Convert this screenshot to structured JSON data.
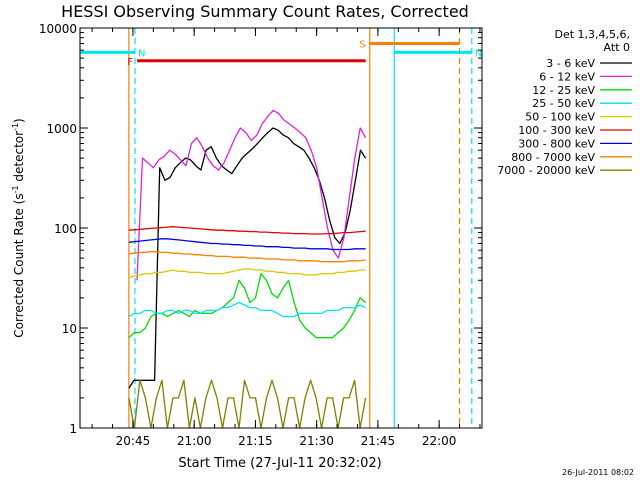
{
  "chart_data": {
    "type": "line",
    "title": "HESSI Observing Summary Count Rates, Corrected",
    "xlabel": "Start Time (27-Jul-11 20:32:02)",
    "ylabel_main": "Corrected Count Rate (s",
    "ylabel_sup1": "-1",
    "ylabel_mid": " detector",
    "ylabel_sup2": "-1",
    "ylabel_end": ")",
    "yscale": "log",
    "ylim": [
      1,
      10000
    ],
    "xlim": [
      "20:32:02",
      "22:10:30"
    ],
    "x_ticks": [
      "20:45",
      "21:00",
      "21:15",
      "21:30",
      "21:45",
      "22:00"
    ],
    "y_ticks": [
      "1",
      "10",
      "100",
      "1000",
      "10000"
    ],
    "date_stamp": "26-Jul-2011 08:02",
    "legend_header": [
      "Det 1,3,4,5,6,",
      "Att 0"
    ],
    "series": [
      {
        "name": "3 - 6 keV",
        "color": "#000000",
        "x_start": "20:44:00",
        "x_end": "21:42:00",
        "values": [
          2.5,
          3,
          3,
          3,
          3,
          3,
          400,
          300,
          320,
          400,
          450,
          500,
          480,
          420,
          380,
          600,
          650,
          500,
          420,
          380,
          350,
          420,
          500,
          560,
          620,
          700,
          800,
          900,
          1000,
          950,
          850,
          800,
          700,
          650,
          600,
          500,
          400,
          300,
          200,
          120,
          80,
          70,
          90,
          150,
          300,
          600,
          500
        ]
      },
      {
        "name": "6 - 12 keV",
        "color": "#e020e0",
        "x_start": "20:46:00",
        "x_end": "21:42:00",
        "values": [
          30,
          500,
          450,
          400,
          480,
          520,
          600,
          550,
          480,
          420,
          700,
          800,
          650,
          500,
          420,
          380,
          450,
          600,
          800,
          1000,
          900,
          750,
          850,
          1100,
          1300,
          1500,
          1400,
          1200,
          1100,
          1000,
          900,
          800,
          600,
          400,
          200,
          100,
          60,
          50,
          80,
          200,
          500,
          1000,
          800
        ]
      },
      {
        "name": "12 - 25 keV",
        "color": "#00dd00",
        "x_start": "20:44:00",
        "x_end": "21:42:00",
        "values": [
          8,
          9,
          9,
          10,
          13,
          14,
          14,
          13,
          14,
          15,
          14,
          13,
          15,
          14,
          14,
          14,
          15,
          16,
          18,
          20,
          30,
          25,
          18,
          20,
          35,
          30,
          22,
          20,
          25,
          30,
          18,
          12,
          10,
          9,
          8,
          8,
          8,
          8,
          9,
          10,
          12,
          15,
          20,
          18
        ]
      },
      {
        "name": "25 - 50 keV",
        "color": "#00e5ee",
        "x_start": "20:44:00",
        "x_end": "21:42:00",
        "values": [
          13,
          14,
          14,
          15,
          15,
          14,
          14,
          15,
          15,
          14,
          15,
          15,
          14,
          14,
          15,
          15,
          15,
          16,
          16,
          17,
          18,
          17,
          16,
          16,
          15,
          15,
          15,
          14,
          13,
          13,
          13,
          14,
          14,
          14,
          14,
          14,
          15,
          15,
          15,
          16,
          16,
          16,
          17,
          16
        ]
      },
      {
        "name": "50 - 100 keV",
        "color": "#d8c800",
        "x_start": "20:44:00",
        "x_end": "21:42:00",
        "values": [
          32,
          33,
          34,
          35,
          35,
          36,
          36,
          37,
          38,
          37,
          37,
          36,
          36,
          36,
          35,
          35,
          35,
          35,
          36,
          37,
          38,
          39,
          39,
          38,
          38,
          37,
          37,
          36,
          36,
          35,
          35,
          35,
          34,
          34,
          34,
          35,
          35,
          35,
          36,
          36,
          37,
          37,
          38,
          38
        ]
      },
      {
        "name": "100 - 300 keV",
        "color": "#e00000",
        "x_start": "20:44:00",
        "x_end": "21:42:00",
        "values": [
          95,
          96,
          97,
          98,
          99,
          100,
          101,
          102,
          103,
          102,
          101,
          100,
          99,
          98,
          97,
          96,
          95,
          95,
          94,
          94,
          93,
          93,
          92,
          92,
          91,
          91,
          90,
          90,
          89,
          89,
          88,
          88,
          88,
          87,
          87,
          87,
          88,
          88,
          89,
          90,
          90,
          91,
          92,
          93
        ]
      },
      {
        "name": "300 - 800 keV",
        "color": "#0000e0",
        "x_start": "20:44:00",
        "x_end": "21:42:00",
        "values": [
          72,
          73,
          74,
          75,
          76,
          77,
          78,
          78,
          77,
          76,
          75,
          74,
          73,
          72,
          71,
          70,
          70,
          69,
          69,
          68,
          68,
          67,
          67,
          66,
          66,
          65,
          65,
          65,
          64,
          64,
          63,
          63,
          63,
          62,
          62,
          62,
          62,
          61,
          61,
          61,
          61,
          62,
          62,
          62
        ]
      },
      {
        "name": "800 - 7000 keV",
        "color": "#ff7f00",
        "x_start": "20:44:00",
        "x_end": "21:42:00",
        "values": [
          55,
          56,
          57,
          57,
          58,
          58,
          57,
          57,
          56,
          56,
          55,
          55,
          54,
          54,
          53,
          53,
          52,
          52,
          52,
          51,
          51,
          51,
          50,
          50,
          50,
          49,
          49,
          49,
          48,
          48,
          48,
          47,
          47,
          47,
          47,
          46,
          46,
          46,
          46,
          46,
          47,
          47,
          47,
          48
        ]
      },
      {
        "name": "7000 - 20000 keV",
        "color": "#808000",
        "x_start": "20:44:00",
        "x_end": "21:42:00",
        "values": [
          2,
          1,
          3,
          2,
          1,
          2,
          3,
          1,
          2,
          2,
          3,
          1,
          2,
          1,
          2,
          3,
          2,
          1,
          2,
          2,
          1,
          3,
          2,
          2,
          1,
          2,
          3,
          2,
          1,
          2,
          2,
          1,
          2,
          3,
          2,
          1,
          2,
          2,
          1,
          2,
          2,
          3,
          1,
          2
        ]
      }
    ],
    "flags": [
      {
        "label": "F",
        "color": "#e00000",
        "start": "20:46:00",
        "end": "21:42:00",
        "value": 4700
      },
      {
        "label": "N",
        "color": "#00e5ee",
        "start": "20:32:02",
        "end": "20:45:30",
        "value": 5700
      },
      {
        "label": "N",
        "color": "#00e5ee",
        "start": "21:49:00",
        "end": "22:08:00",
        "value": 5700
      },
      {
        "label": "S",
        "color": "#ff7f00",
        "start": "21:43:00",
        "end": "22:05:00",
        "value": 7000
      }
    ],
    "vertical_lines": [
      {
        "time": "20:32:02",
        "color": "#00e5ee",
        "style": "solid"
      },
      {
        "time": "20:45:30",
        "color": "#00e5ee",
        "style": "dashed"
      },
      {
        "time": "20:44:00",
        "color": "#ff7f00",
        "style": "solid"
      },
      {
        "time": "21:43:00",
        "color": "#ff7f00",
        "style": "solid"
      },
      {
        "time": "21:49:00",
        "color": "#00e5ee",
        "style": "solid"
      },
      {
        "time": "22:05:00",
        "color": "#ff7f00",
        "style": "dashed"
      },
      {
        "time": "22:08:00",
        "color": "#00e5ee",
        "style": "dashed"
      }
    ]
  }
}
